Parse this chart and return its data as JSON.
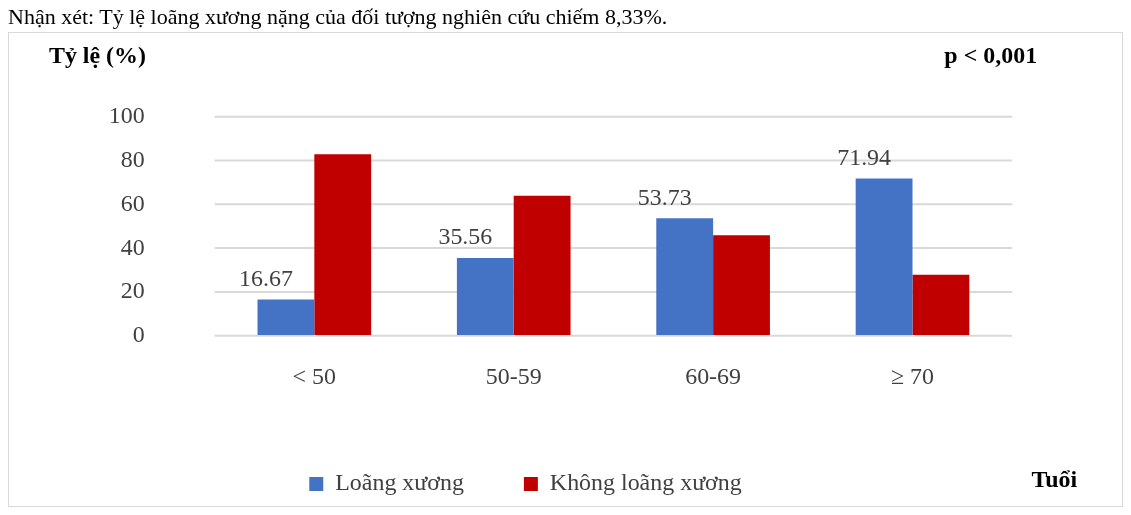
{
  "chart_data": {
    "type": "bar",
    "ylabel": "Tỷ lệ (%)",
    "xlabel": "Tuổi",
    "annotations": [
      "Nhận xét: Tỷ lệ loãng xương nặng của đối tượng nghiên cứu chiếm 8,33%.",
      "p < 0,001"
    ],
    "categories": [
      "< 50",
      "50-59",
      "60-69",
      "≥ 70"
    ],
    "series": [
      {
        "name": "Loãng xương",
        "color": "#4472c4",
        "values": [
          16.67,
          35.56,
          53.73,
          71.94
        ],
        "value_labels": [
          "16.67",
          "35.56",
          "53.73",
          "71.94"
        ]
      },
      {
        "name": "Không loãng xương",
        "color": "#c00000",
        "values": [
          83,
          64,
          46,
          28
        ]
      }
    ],
    "ylim": [
      0,
      100
    ],
    "yticks": [
      0,
      20,
      40,
      60,
      80,
      100
    ],
    "grid": "y",
    "legend": "bottom"
  }
}
